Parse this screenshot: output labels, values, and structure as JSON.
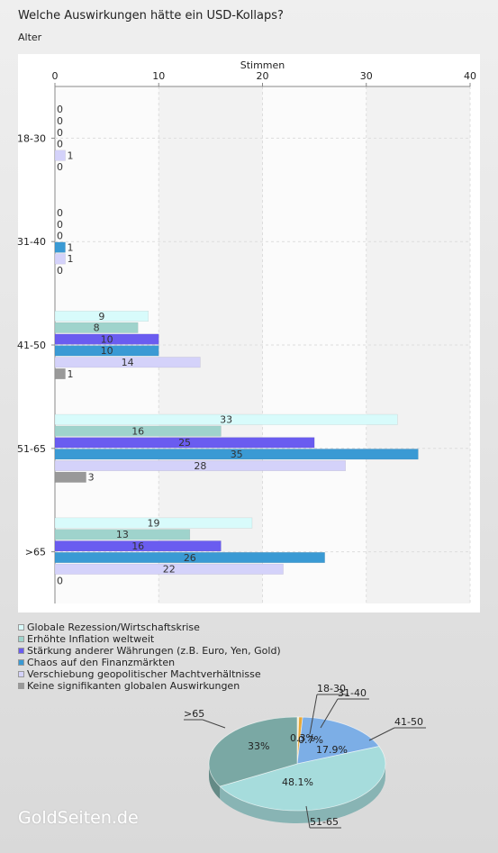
{
  "header": {
    "title": "Welche Auswirkungen hätte ein USD-Kollaps?",
    "subtitle": "Alter"
  },
  "brand": "GoldSeiten.de",
  "chart_data": [
    {
      "type": "bar",
      "orientation": "horizontal",
      "xlabel": "Stimmen",
      "ylabel": "Alter",
      "xlim": [
        0,
        40
      ],
      "xticks": [
        0,
        10,
        20,
        30,
        40
      ],
      "grid": true,
      "categories": [
        "18-30",
        "31-40",
        "41-50",
        "51-65",
        ">65"
      ],
      "series": [
        {
          "name": "Globale Rezession/Wirtschaftskrise",
          "color": "#d8fbfb",
          "values": [
            0,
            0,
            9,
            33,
            19
          ]
        },
        {
          "name": "Erhöhte Inflation weltweit",
          "color": "#9fd3cc",
          "values": [
            0,
            0,
            8,
            16,
            13
          ]
        },
        {
          "name": "Stärkung anderer Währungen (z.B. Euro, Yen, Gold)",
          "color": "#6a5cf0",
          "values": [
            0,
            0,
            10,
            25,
            16
          ]
        },
        {
          "name": "Chaos auf den Finanzmärkten",
          "color": "#3a9ad4",
          "values": [
            0,
            1,
            10,
            35,
            26
          ]
        },
        {
          "name": "Verschiebung geopolitischer Machtverhältnisse",
          "color": "#d4d2fa",
          "values": [
            1,
            1,
            14,
            28,
            22
          ]
        },
        {
          "name": "Keine signifikanten globalen Auswirkungen",
          "color": "#999999",
          "values": [
            0,
            0,
            1,
            3,
            0
          ]
        }
      ]
    },
    {
      "type": "pie",
      "slices": [
        {
          "label": "18-30",
          "value": 0.3,
          "percent_label": "0.3%",
          "color": "#f1e9c4"
        },
        {
          "label": "31-40",
          "value": 0.7,
          "percent_label": "0.7%",
          "color": "#e8a838"
        },
        {
          "label": "41-50",
          "value": 17.9,
          "percent_label": "17.9%",
          "color": "#7caee6"
        },
        {
          "label": "51-65",
          "value": 48.1,
          "percent_label": "48.1%",
          "color": "#a6dcdc"
        },
        {
          "label": ">65",
          "value": 33,
          "percent_label": "33%",
          "color": "#7aa8a4"
        }
      ]
    }
  ]
}
